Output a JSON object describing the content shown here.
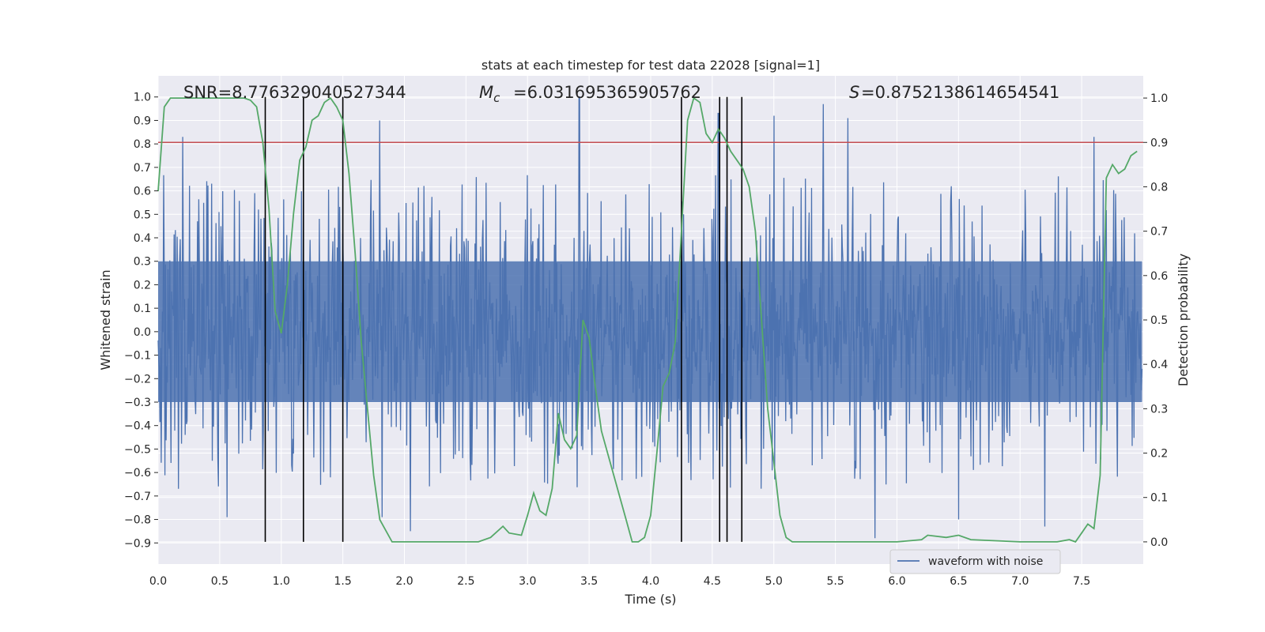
{
  "chart_data": {
    "type": "line",
    "title": "stats at each timestep for test data 22028 [signal=1]",
    "xlabel": "Time (s)",
    "ylabel": "Whitened strain",
    "ylabel_right": "Detection probability",
    "xlim": [
      0,
      8.0
    ],
    "ylim": [
      -0.99,
      1.09
    ],
    "ylim_right": [
      -0.05,
      1.05
    ],
    "x_ticks": [
      "0.0",
      "0.5",
      "1.0",
      "1.5",
      "2.0",
      "2.5",
      "3.0",
      "3.5",
      "4.0",
      "4.5",
      "5.0",
      "5.5",
      "6.0",
      "6.5",
      "7.0",
      "7.5"
    ],
    "y_ticks": [
      "−0.9",
      "−0.8",
      "−0.7",
      "−0.6",
      "−0.5",
      "−0.4",
      "−0.3",
      "−0.2",
      "−0.1",
      "0.0",
      "0.1",
      "0.2",
      "0.3",
      "0.4",
      "0.5",
      "0.6",
      "0.7",
      "0.8",
      "0.9",
      "1.0"
    ],
    "y_ticks_right": [
      "0.0",
      "0.1",
      "0.2",
      "0.3",
      "0.4",
      "0.5",
      "0.6",
      "0.7",
      "0.8",
      "0.9",
      "1.0"
    ],
    "grid": true,
    "legend_position": "lower-right",
    "annotations": {
      "snr": "SNR=8.776329040527344",
      "mc": "=6.031695365905762",
      "s": "=0.8752138614654541"
    },
    "threshold_right": 0.9,
    "event_lines_x": [
      0.87,
      1.18,
      1.5,
      4.25,
      4.56,
      4.62,
      4.74
    ],
    "series": [
      {
        "name": "waveform with noise",
        "color": "#4c72b0",
        "kind": "dense-noise",
        "time_range": [
          0.0,
          7.99
        ],
        "body_range": [
          -0.3,
          0.3
        ],
        "notable_peaks": [
          {
            "x": 0.2,
            "y": 0.83
          },
          {
            "x": 1.8,
            "y": 0.9
          },
          {
            "x": 3.42,
            "y": 1.0
          },
          {
            "x": 4.55,
            "y": 0.93
          },
          {
            "x": 5.0,
            "y": 0.92
          },
          {
            "x": 5.4,
            "y": 0.97
          },
          {
            "x": 5.6,
            "y": 0.91
          },
          {
            "x": 7.6,
            "y": 0.83
          },
          {
            "x": 0.56,
            "y": -0.79
          },
          {
            "x": 1.82,
            "y": -0.79
          },
          {
            "x": 2.05,
            "y": -0.85
          },
          {
            "x": 5.82,
            "y": -0.88
          },
          {
            "x": 6.5,
            "y": -0.8
          },
          {
            "x": 7.2,
            "y": -0.83
          }
        ]
      },
      {
        "name": "",
        "color": "#55a868",
        "axis": "right",
        "x": [
          0.0,
          0.05,
          0.1,
          0.15,
          0.2,
          0.3,
          0.4,
          0.5,
          0.6,
          0.7,
          0.75,
          0.8,
          0.85,
          0.9,
          0.95,
          1.0,
          1.05,
          1.1,
          1.15,
          1.2,
          1.25,
          1.3,
          1.35,
          1.4,
          1.45,
          1.5,
          1.55,
          1.6,
          1.65,
          1.7,
          1.75,
          1.8,
          1.9,
          2.0,
          2.2,
          2.4,
          2.6,
          2.7,
          2.8,
          2.85,
          2.95,
          3.0,
          3.05,
          3.1,
          3.15,
          3.2,
          3.25,
          3.3,
          3.35,
          3.4,
          3.45,
          3.5,
          3.55,
          3.6,
          3.7,
          3.8,
          3.85,
          3.9,
          3.95,
          4.0,
          4.05,
          4.1,
          4.15,
          4.2,
          4.25,
          4.3,
          4.35,
          4.4,
          4.45,
          4.5,
          4.55,
          4.6,
          4.65,
          4.7,
          4.75,
          4.8,
          4.85,
          4.9,
          4.95,
          5.0,
          5.05,
          5.1,
          5.15,
          5.2,
          5.3,
          5.5,
          5.8,
          6.0,
          6.2,
          6.25,
          6.4,
          6.5,
          6.6,
          7.0,
          7.3,
          7.4,
          7.45,
          7.5,
          7.55,
          7.6,
          7.65,
          7.7,
          7.75,
          7.8,
          7.85,
          7.9,
          7.95
        ],
        "values": [
          0.79,
          0.98,
          1.0,
          1.0,
          1.0,
          1.0,
          1.0,
          1.0,
          1.0,
          1.0,
          0.995,
          0.98,
          0.9,
          0.75,
          0.52,
          0.47,
          0.58,
          0.74,
          0.86,
          0.89,
          0.95,
          0.96,
          0.99,
          1.0,
          0.98,
          0.95,
          0.83,
          0.65,
          0.45,
          0.3,
          0.15,
          0.05,
          0.0,
          0.0,
          0.0,
          0.0,
          0.0,
          0.01,
          0.035,
          0.02,
          0.015,
          0.06,
          0.11,
          0.07,
          0.06,
          0.12,
          0.29,
          0.23,
          0.21,
          0.24,
          0.5,
          0.46,
          0.35,
          0.25,
          0.15,
          0.05,
          0.0,
          0.0,
          0.01,
          0.06,
          0.2,
          0.35,
          0.38,
          0.45,
          0.7,
          0.95,
          1.0,
          0.99,
          0.92,
          0.9,
          0.93,
          0.91,
          0.88,
          0.86,
          0.84,
          0.8,
          0.7,
          0.5,
          0.3,
          0.18,
          0.06,
          0.01,
          0.0,
          0.0,
          0.0,
          0.0,
          0.0,
          0.0,
          0.005,
          0.015,
          0.01,
          0.015,
          0.005,
          0.0,
          0.0,
          0.005,
          0.0,
          0.02,
          0.04,
          0.03,
          0.15,
          0.82,
          0.85,
          0.83,
          0.84,
          0.87,
          0.88
        ]
      }
    ]
  }
}
